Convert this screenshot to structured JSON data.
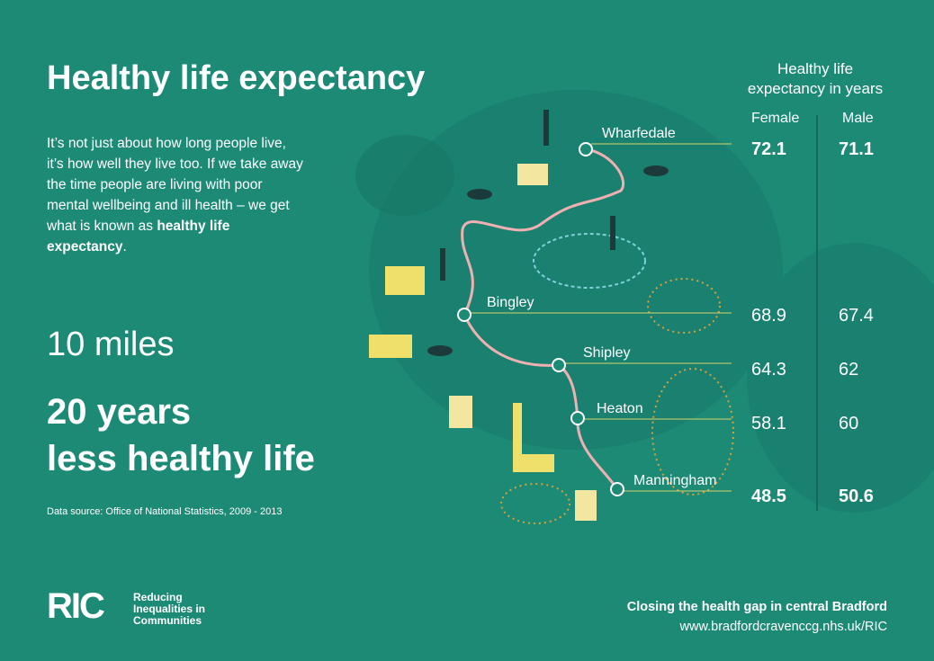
{
  "title": "Healthy life expectancy",
  "intro": {
    "text": "It’s not just about how long people live, it’s how well they live too. If we take away the time people are living with poor mental wellbeing and ill health – we get what is known as ",
    "bold": "healthy life expectancy",
    "end": "."
  },
  "stat_distance": "10 miles",
  "stat_gap": [
    "20 years",
    "less healthy life"
  ],
  "source": "Data source: Office of National Statistics, 2009 - 2013",
  "table": {
    "heading": [
      "Healthy life",
      "expectancy in years"
    ],
    "columns": [
      "Female",
      "Male"
    ],
    "rows": [
      {
        "place": "Wharfedale",
        "female": 72.1,
        "male": 71.1
      },
      {
        "place": "Bingley",
        "female": 68.9,
        "male": 67.4
      },
      {
        "place": "Shipley",
        "female": 64.3,
        "male": 62
      },
      {
        "place": "Heaton",
        "female": 58.1,
        "male": 60
      },
      {
        "place": "Manningham",
        "female": 48.5,
        "male": 50.6
      }
    ]
  },
  "logo": {
    "mark": "RIC",
    "name": [
      "Reducing",
      "Inequalities in",
      "Communities"
    ]
  },
  "footer": {
    "tagline": "Closing the health gap in central Bradford",
    "url": "www.bradfordcravenccg.nhs.uk/RIC"
  }
}
